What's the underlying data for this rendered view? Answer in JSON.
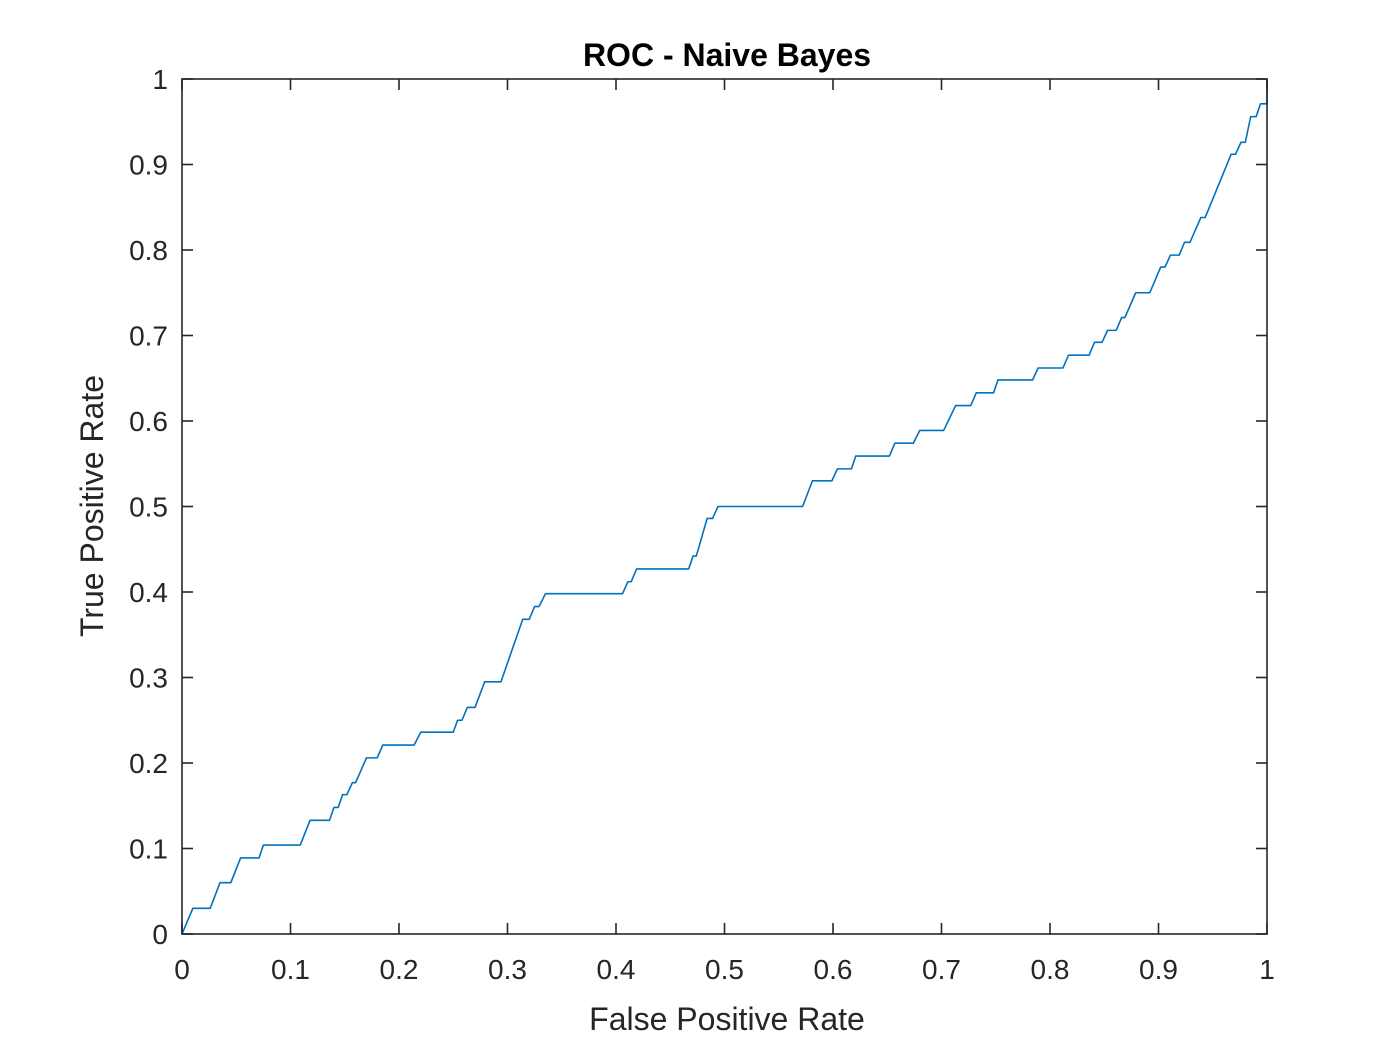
{
  "chart_data": {
    "type": "line",
    "title": "ROC - Naive Bayes",
    "xlabel": "False Positive Rate",
    "ylabel": "True Positive Rate",
    "xlim": [
      0,
      1
    ],
    "ylim": [
      0,
      1
    ],
    "grid": false,
    "xticks": [
      0,
      0.1,
      0.2,
      0.3,
      0.4,
      0.5,
      0.6,
      0.7,
      0.8,
      0.9,
      1
    ],
    "xtick_labels": [
      "0",
      "0.1",
      "0.2",
      "0.3",
      "0.4",
      "0.5",
      "0.6",
      "0.7",
      "0.8",
      "0.9",
      "1"
    ],
    "yticks": [
      0,
      0.1,
      0.2,
      0.3,
      0.4,
      0.5,
      0.6,
      0.7,
      0.8,
      0.9,
      1
    ],
    "ytick_labels": [
      "0",
      "0.1",
      "0.2",
      "0.3",
      "0.4",
      "0.5",
      "0.6",
      "0.7",
      "0.8",
      "0.9",
      "1"
    ],
    "series": [
      {
        "color": "#0072BD",
        "points": [
          [
            0,
            0
          ],
          [
            0.01,
            0.03
          ],
          [
            0.026,
            0.03
          ],
          [
            0.035,
            0.06
          ],
          [
            0.045,
            0.06
          ],
          [
            0.054,
            0.089
          ],
          [
            0.071,
            0.089
          ],
          [
            0.075,
            0.104
          ],
          [
            0.109,
            0.104
          ],
          [
            0.118,
            0.133
          ],
          [
            0.136,
            0.133
          ],
          [
            0.14,
            0.148
          ],
          [
            0.144,
            0.148
          ],
          [
            0.148,
            0.163
          ],
          [
            0.152,
            0.163
          ],
          [
            0.157,
            0.177
          ],
          [
            0.16,
            0.177
          ],
          [
            0.17,
            0.206
          ],
          [
            0.18,
            0.206
          ],
          [
            0.185,
            0.221
          ],
          [
            0.214,
            0.221
          ],
          [
            0.22,
            0.236
          ],
          [
            0.25,
            0.236
          ],
          [
            0.254,
            0.25
          ],
          [
            0.258,
            0.25
          ],
          [
            0.263,
            0.265
          ],
          [
            0.27,
            0.265
          ],
          [
            0.279,
            0.295
          ],
          [
            0.294,
            0.295
          ],
          [
            0.314,
            0.368
          ],
          [
            0.32,
            0.368
          ],
          [
            0.325,
            0.383
          ],
          [
            0.329,
            0.383
          ],
          [
            0.335,
            0.398
          ],
          [
            0.406,
            0.398
          ],
          [
            0.411,
            0.412
          ],
          [
            0.414,
            0.412
          ],
          [
            0.419,
            0.427
          ],
          [
            0.467,
            0.427
          ],
          [
            0.471,
            0.442
          ],
          [
            0.474,
            0.442
          ],
          [
            0.484,
            0.486
          ],
          [
            0.489,
            0.486
          ],
          [
            0.494,
            0.5
          ],
          [
            0.572,
            0.5
          ],
          [
            0.581,
            0.53
          ],
          [
            0.599,
            0.53
          ],
          [
            0.604,
            0.544
          ],
          [
            0.617,
            0.544
          ],
          [
            0.621,
            0.559
          ],
          [
            0.652,
            0.559
          ],
          [
            0.657,
            0.574
          ],
          [
            0.674,
            0.574
          ],
          [
            0.68,
            0.589
          ],
          [
            0.702,
            0.589
          ],
          [
            0.713,
            0.618
          ],
          [
            0.727,
            0.618
          ],
          [
            0.732,
            0.633
          ],
          [
            0.748,
            0.633
          ],
          [
            0.752,
            0.648
          ],
          [
            0.784,
            0.648
          ],
          [
            0.789,
            0.662
          ],
          [
            0.812,
            0.662
          ],
          [
            0.817,
            0.677
          ],
          [
            0.836,
            0.677
          ],
          [
            0.841,
            0.692
          ],
          [
            0.848,
            0.692
          ],
          [
            0.853,
            0.706
          ],
          [
            0.861,
            0.706
          ],
          [
            0.866,
            0.721
          ],
          [
            0.869,
            0.721
          ],
          [
            0.879,
            0.75
          ],
          [
            0.892,
            0.75
          ],
          [
            0.902,
            0.78
          ],
          [
            0.906,
            0.78
          ],
          [
            0.911,
            0.794
          ],
          [
            0.919,
            0.794
          ],
          [
            0.924,
            0.809
          ],
          [
            0.929,
            0.809
          ],
          [
            0.939,
            0.838
          ],
          [
            0.943,
            0.838
          ],
          [
            0.967,
            0.912
          ],
          [
            0.971,
            0.912
          ],
          [
            0.976,
            0.926
          ],
          [
            0.98,
            0.926
          ],
          [
            0.985,
            0.956
          ],
          [
            0.99,
            0.956
          ],
          [
            0.994,
            0.971
          ],
          [
            1.0,
            0.971
          ],
          [
            1.0,
            1.0
          ]
        ]
      }
    ]
  }
}
